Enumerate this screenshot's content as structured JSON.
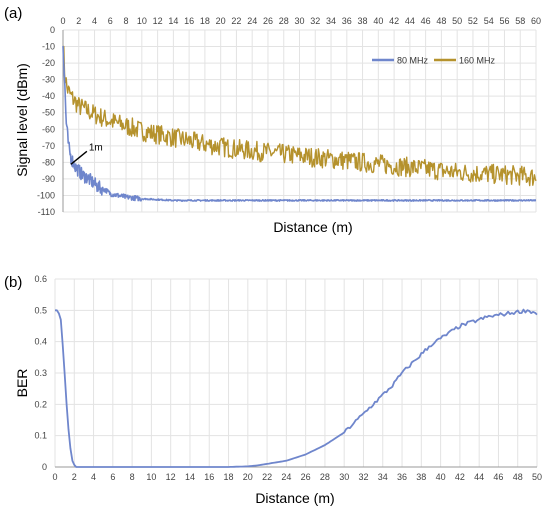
{
  "chart_data": [
    {
      "panel_label": "(a)",
      "type": "line",
      "xlabel": "Distance  (m)",
      "ylabel": "Signal level  (dBm)",
      "xlim": [
        0,
        60
      ],
      "ylim": [
        -110,
        0
      ],
      "x_ticks": [
        0,
        2,
        4,
        6,
        8,
        10,
        12,
        14,
        16,
        18,
        20,
        22,
        24,
        26,
        28,
        30,
        32,
        34,
        36,
        38,
        40,
        42,
        44,
        46,
        48,
        50,
        52,
        54,
        56,
        58,
        60
      ],
      "y_ticks": [
        0,
        -10,
        -20,
        -30,
        -40,
        -50,
        -60,
        -70,
        -80,
        -90,
        -100,
        -110
      ],
      "x_axis_position": "top",
      "grid": true,
      "legend_position": "top-right",
      "annotation": {
        "text": "1m",
        "x": 1,
        "y": -83
      },
      "series": [
        {
          "name": "80 MHz",
          "color": "#6f86cc",
          "x": [
            0,
            0.2,
            0.4,
            0.7,
            1.0,
            1.3,
            1.6,
            2.0,
            2.5,
            3.0,
            3.5,
            4.0,
            4.5,
            5.0,
            5.5,
            6.0,
            7.0,
            8.0,
            9.0,
            10.0,
            12.0,
            14.0,
            16.0,
            20.0,
            25.0,
            30.0,
            40.0,
            50.0,
            60.0
          ],
          "y": [
            -8,
            -30,
            -55,
            -70,
            -77,
            -80,
            -83,
            -85,
            -88,
            -89,
            -91,
            -93,
            -95,
            -96,
            -97,
            -99,
            -100,
            -101,
            -101.5,
            -102,
            -102.5,
            -103,
            -103,
            -103,
            -103,
            -103,
            -103,
            -103,
            -103
          ]
        },
        {
          "name": "160 MHz",
          "color": "#b5922d",
          "x": [
            0,
            0.2,
            0.5,
            1.0,
            2.0,
            4.0,
            6.0,
            8.0,
            10.0,
            14.0,
            18.0,
            22.0,
            26.0,
            30.0,
            34.0,
            38.0,
            42.0,
            46.0,
            50.0,
            54.0,
            58.0,
            60.0
          ],
          "y": [
            -5,
            -25,
            -35,
            -40,
            -46,
            -51,
            -55,
            -58,
            -61,
            -65,
            -69,
            -72,
            -74,
            -76,
            -78,
            -80,
            -82,
            -84,
            -86,
            -87,
            -88,
            -89
          ]
        }
      ]
    },
    {
      "panel_label": "(b)",
      "type": "line",
      "xlabel": "Distance  (m)",
      "ylabel": "BER",
      "xlim": [
        0,
        50
      ],
      "ylim": [
        0,
        0.6
      ],
      "x_ticks": [
        0,
        2,
        4,
        6,
        8,
        10,
        12,
        14,
        16,
        18,
        20,
        22,
        24,
        26,
        28,
        30,
        32,
        34,
        36,
        38,
        40,
        42,
        44,
        46,
        48,
        50
      ],
      "y_ticks": [
        0,
        0.1,
        0.2,
        0.3,
        0.4,
        0.5,
        0.6
      ],
      "y_tick_labels": [
        "0",
        "0.1",
        "0.2",
        "0.3",
        "0.4",
        "0.5",
        "0.6"
      ],
      "grid": true,
      "series": [
        {
          "color": "#6f86cc",
          "x": [
            0,
            0.3,
            0.6,
            0.9,
            1.2,
            1.5,
            1.8,
            2.1,
            2.4,
            3,
            6,
            10,
            14,
            18,
            20,
            21,
            22,
            23,
            24,
            25,
            26,
            27,
            28,
            29,
            30,
            31,
            32,
            33,
            34,
            35,
            36,
            37,
            38,
            39,
            40,
            41,
            42,
            43,
            44,
            45,
            46,
            47,
            48,
            49,
            50
          ],
          "y": [
            0.5,
            0.5,
            0.47,
            0.35,
            0.2,
            0.08,
            0.02,
            0.0,
            0.0,
            0.0,
            0.0,
            0.0,
            0.0,
            0.0,
            0.002,
            0.005,
            0.01,
            0.015,
            0.02,
            0.03,
            0.04,
            0.055,
            0.07,
            0.09,
            0.11,
            0.14,
            0.17,
            0.2,
            0.23,
            0.26,
            0.3,
            0.33,
            0.36,
            0.39,
            0.41,
            0.43,
            0.45,
            0.46,
            0.47,
            0.48,
            0.485,
            0.49,
            0.495,
            0.5,
            0.49
          ]
        }
      ]
    }
  ]
}
